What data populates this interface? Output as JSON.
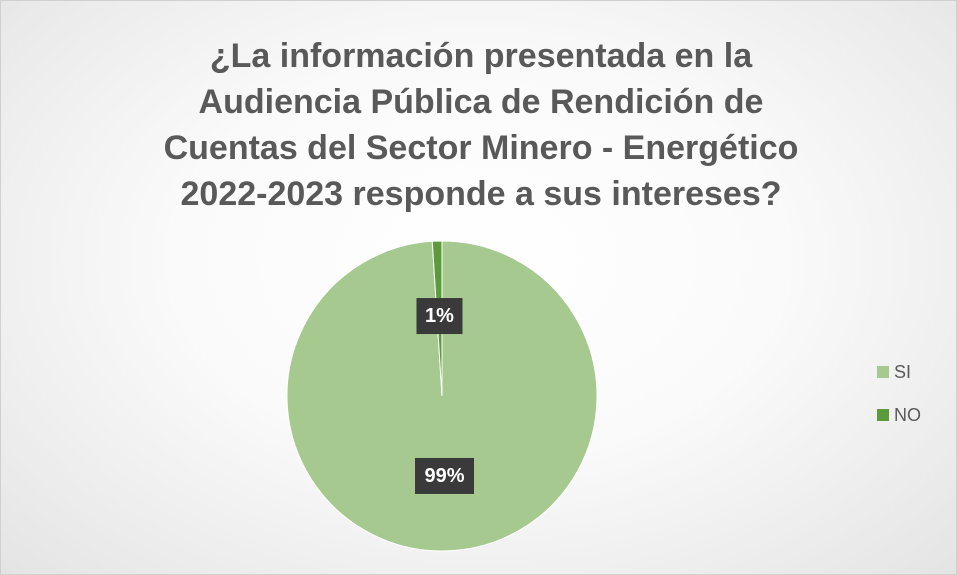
{
  "chart_data": {
    "type": "pie",
    "title": "¿La información presentada en la Audiencia Pública de Rendición de Cuentas del Sector Minero - Energético 2022-2023 responde a sus intereses?",
    "categories": [
      "SI",
      "NO"
    ],
    "values": [
      99,
      1
    ],
    "value_labels": [
      "99%",
      "1%"
    ],
    "colors": [
      "#a5c98f",
      "#5b9b3c"
    ],
    "legend": "right"
  }
}
